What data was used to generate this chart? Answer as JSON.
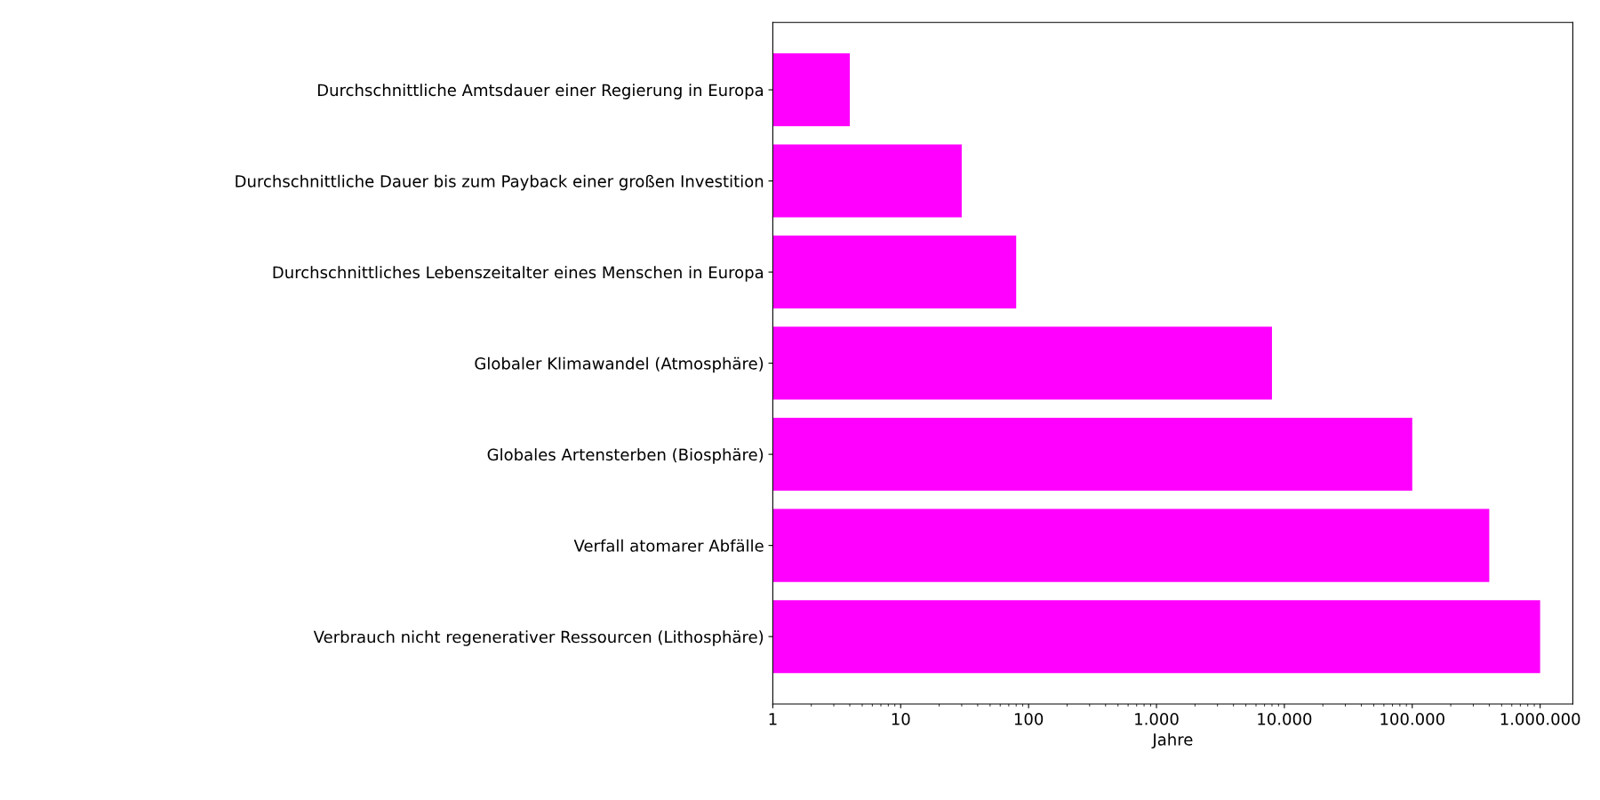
{
  "chart_data": {
    "type": "bar",
    "orientation": "horizontal",
    "xlabel": "Jahre",
    "categories": [
      "Durchschnittliche Amtsdauer einer Regierung in Europa",
      "Durchschnittliche Dauer bis zum Payback einer großen Investition",
      "Durchschnittliches Lebenszeitalter eines Menschen in Europa",
      "Globaler Klimawandel (Atmosphäre)",
      "Globales Artensterben (Biosphäre)",
      "Verfall atomarer Abfälle",
      "Verbrauch nicht regenerativer Ressourcen (Lithosphäre)"
    ],
    "values": [
      4,
      30,
      80,
      8000,
      100000,
      400000,
      1000000
    ],
    "color": "#ff00ff",
    "log": "x",
    "xlim": [
      1,
      1800000
    ],
    "xticks": [
      1,
      10,
      100,
      {
        "value": 1000,
        "label": "1.000"
      },
      {
        "value": 10000,
        "label": "10.000"
      },
      {
        "value": 100000,
        "label": "100.000"
      },
      {
        "value": 1000000,
        "label": "1.000.000"
      }
    ],
    "grid": false
  }
}
